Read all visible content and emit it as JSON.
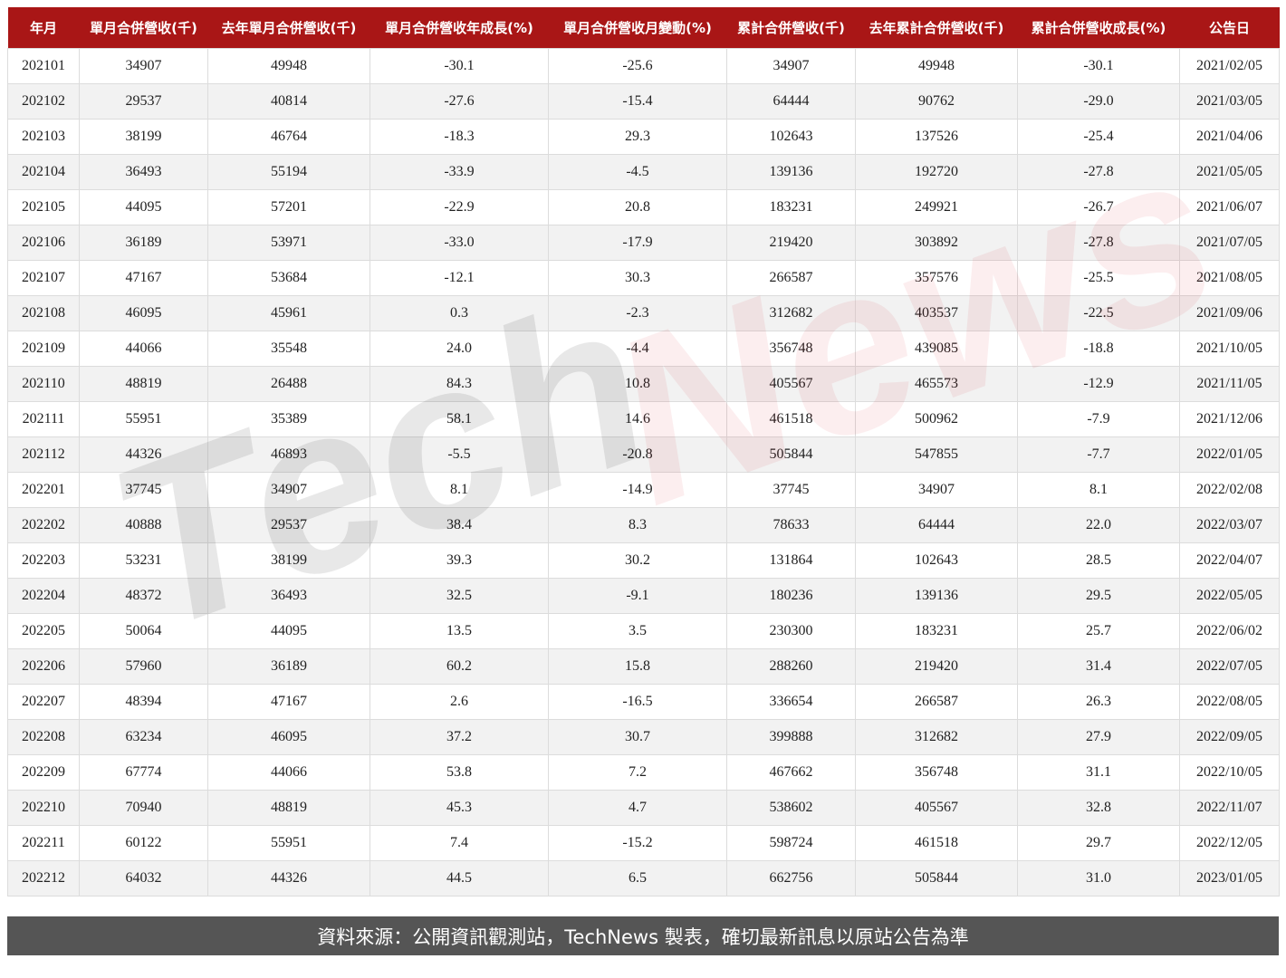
{
  "chart_data": {
    "type": "table",
    "columns": [
      "年月",
      "單月合併營收(千)",
      "去年單月合併營收(千)",
      "單月合併營收年成長(%)",
      "單月合併營收月變動(%)",
      "累計合併營收(千)",
      "去年累計合併營收(千)",
      "累計合併營收成長(%)",
      "公告日"
    ],
    "rows": [
      [
        "202101",
        "34907",
        "49948",
        "-30.1",
        "-25.6",
        "34907",
        "49948",
        "-30.1",
        "2021/02/05"
      ],
      [
        "202102",
        "29537",
        "40814",
        "-27.6",
        "-15.4",
        "64444",
        "90762",
        "-29.0",
        "2021/03/05"
      ],
      [
        "202103",
        "38199",
        "46764",
        "-18.3",
        "29.3",
        "102643",
        "137526",
        "-25.4",
        "2021/04/06"
      ],
      [
        "202104",
        "36493",
        "55194",
        "-33.9",
        "-4.5",
        "139136",
        "192720",
        "-27.8",
        "2021/05/05"
      ],
      [
        "202105",
        "44095",
        "57201",
        "-22.9",
        "20.8",
        "183231",
        "249921",
        "-26.7",
        "2021/06/07"
      ],
      [
        "202106",
        "36189",
        "53971",
        "-33.0",
        "-17.9",
        "219420",
        "303892",
        "-27.8",
        "2021/07/05"
      ],
      [
        "202107",
        "47167",
        "53684",
        "-12.1",
        "30.3",
        "266587",
        "357576",
        "-25.5",
        "2021/08/05"
      ],
      [
        "202108",
        "46095",
        "45961",
        "0.3",
        "-2.3",
        "312682",
        "403537",
        "-22.5",
        "2021/09/06"
      ],
      [
        "202109",
        "44066",
        "35548",
        "24.0",
        "-4.4",
        "356748",
        "439085",
        "-18.8",
        "2021/10/05"
      ],
      [
        "202110",
        "48819",
        "26488",
        "84.3",
        "10.8",
        "405567",
        "465573",
        "-12.9",
        "2021/11/05"
      ],
      [
        "202111",
        "55951",
        "35389",
        "58.1",
        "14.6",
        "461518",
        "500962",
        "-7.9",
        "2021/12/06"
      ],
      [
        "202112",
        "44326",
        "46893",
        "-5.5",
        "-20.8",
        "505844",
        "547855",
        "-7.7",
        "2022/01/05"
      ],
      [
        "202201",
        "37745",
        "34907",
        "8.1",
        "-14.9",
        "37745",
        "34907",
        "8.1",
        "2022/02/08"
      ],
      [
        "202202",
        "40888",
        "29537",
        "38.4",
        "8.3",
        "78633",
        "64444",
        "22.0",
        "2022/03/07"
      ],
      [
        "202203",
        "53231",
        "38199",
        "39.3",
        "30.2",
        "131864",
        "102643",
        "28.5",
        "2022/04/07"
      ],
      [
        "202204",
        "48372",
        "36493",
        "32.5",
        "-9.1",
        "180236",
        "139136",
        "29.5",
        "2022/05/05"
      ],
      [
        "202205",
        "50064",
        "44095",
        "13.5",
        "3.5",
        "230300",
        "183231",
        "25.7",
        "2022/06/02"
      ],
      [
        "202206",
        "57960",
        "36189",
        "60.2",
        "15.8",
        "288260",
        "219420",
        "31.4",
        "2022/07/05"
      ],
      [
        "202207",
        "48394",
        "47167",
        "2.6",
        "-16.5",
        "336654",
        "266587",
        "26.3",
        "2022/08/05"
      ],
      [
        "202208",
        "63234",
        "46095",
        "37.2",
        "30.7",
        "399888",
        "312682",
        "27.9",
        "2022/09/05"
      ],
      [
        "202209",
        "67774",
        "44066",
        "53.8",
        "7.2",
        "467662",
        "356748",
        "31.1",
        "2022/10/05"
      ],
      [
        "202210",
        "70940",
        "48819",
        "45.3",
        "4.7",
        "538602",
        "405567",
        "32.8",
        "2022/11/07"
      ],
      [
        "202211",
        "60122",
        "55951",
        "7.4",
        "-15.2",
        "598724",
        "461518",
        "29.7",
        "2022/12/05"
      ],
      [
        "202212",
        "64032",
        "44326",
        "44.5",
        "6.5",
        "662756",
        "505844",
        "31.0",
        "2023/01/05"
      ]
    ]
  },
  "footer": {
    "text": "資料來源：公開資訊觀測站，TechNews 製表，確切最新訊息以原站公告為準"
  },
  "watermark": {
    "part1": "Tech",
    "part2": "News"
  },
  "colors": {
    "header": "#a91616",
    "footer": "#555555",
    "row_alt": "#f2f2f2"
  }
}
